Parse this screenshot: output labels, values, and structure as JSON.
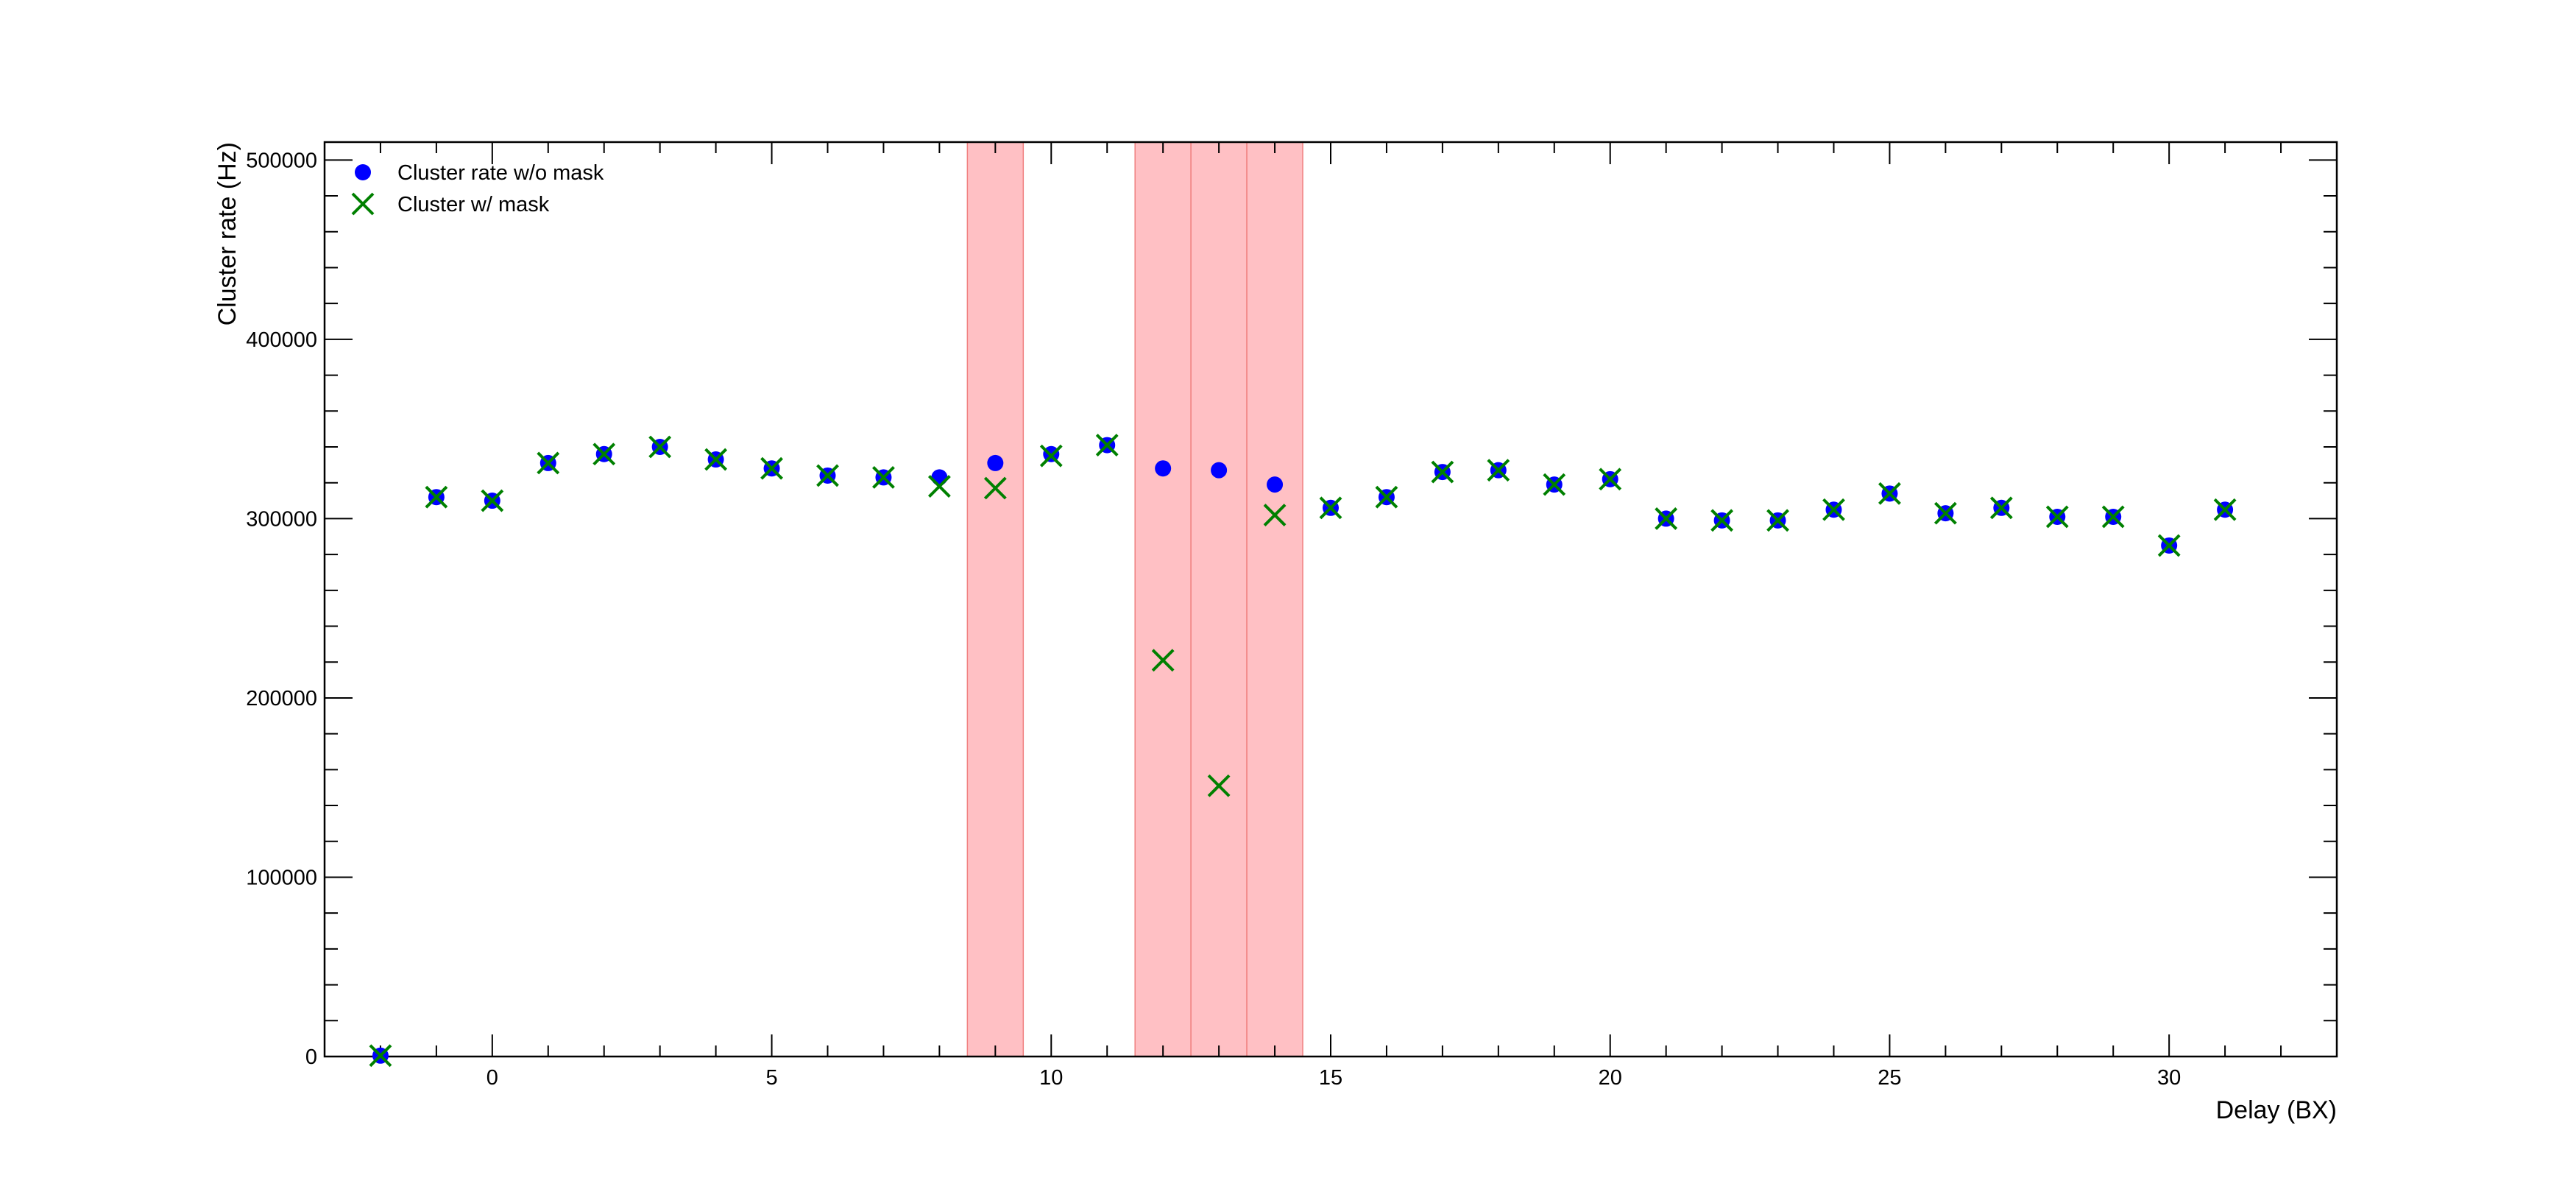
{
  "chart_data": {
    "type": "scatter",
    "title": "",
    "xlabel": "Delay (BX)",
    "ylabel": "Cluster rate (Hz)",
    "xlim": [
      -3,
      33
    ],
    "ylim": [
      0,
      510000
    ],
    "x_ticks": [
      0,
      5,
      10,
      15,
      20,
      25,
      30
    ],
    "y_ticks": [
      0,
      100000,
      200000,
      300000,
      400000,
      500000
    ],
    "grid": false,
    "legend_position": "top-left",
    "colors": {
      "no_mask": "#0000ff",
      "mask": "#008000",
      "band_fill": "#ffc0c4",
      "band_edge": "#f08080"
    },
    "highlight_bands": [
      {
        "x0": 8.5,
        "x1": 9.5
      },
      {
        "x0": 11.5,
        "x1": 12.5
      },
      {
        "x0": 12.5,
        "x1": 13.5
      },
      {
        "x0": 13.5,
        "x1": 14.5
      }
    ],
    "series": [
      {
        "name": "Cluster rate w/o mask",
        "marker": "circle",
        "x": [
          -2,
          -1,
          0,
          1,
          2,
          3,
          4,
          5,
          6,
          7,
          8,
          9,
          10,
          11,
          12,
          13,
          14,
          15,
          16,
          17,
          18,
          19,
          20,
          21,
          22,
          23,
          24,
          25,
          26,
          27,
          28,
          29,
          30,
          31
        ],
        "values": [
          500,
          312000,
          310000,
          331000,
          336000,
          340000,
          333000,
          328000,
          324000,
          323000,
          323000,
          331000,
          336000,
          341000,
          328000,
          327000,
          319000,
          306000,
          312000,
          326000,
          327000,
          319000,
          322000,
          300000,
          299000,
          299000,
          305000,
          314000,
          303000,
          306000,
          301000,
          301000,
          285000,
          305000
        ]
      },
      {
        "name": "Cluster w/ mask",
        "marker": "x",
        "x": [
          -2,
          -1,
          0,
          1,
          2,
          3,
          4,
          5,
          6,
          7,
          8,
          9,
          10,
          11,
          12,
          13,
          14,
          15,
          16,
          17,
          18,
          19,
          20,
          21,
          22,
          23,
          24,
          25,
          26,
          27,
          28,
          29,
          30,
          31
        ],
        "values": [
          500,
          312000,
          310000,
          331000,
          336000,
          340000,
          333000,
          328000,
          324000,
          323000,
          318000,
          317000,
          335000,
          341000,
          221000,
          151000,
          302000,
          306000,
          312000,
          326000,
          327000,
          319000,
          322000,
          300000,
          299000,
          299000,
          305000,
          314000,
          303000,
          306000,
          301000,
          301000,
          285000,
          305000
        ]
      }
    ]
  }
}
